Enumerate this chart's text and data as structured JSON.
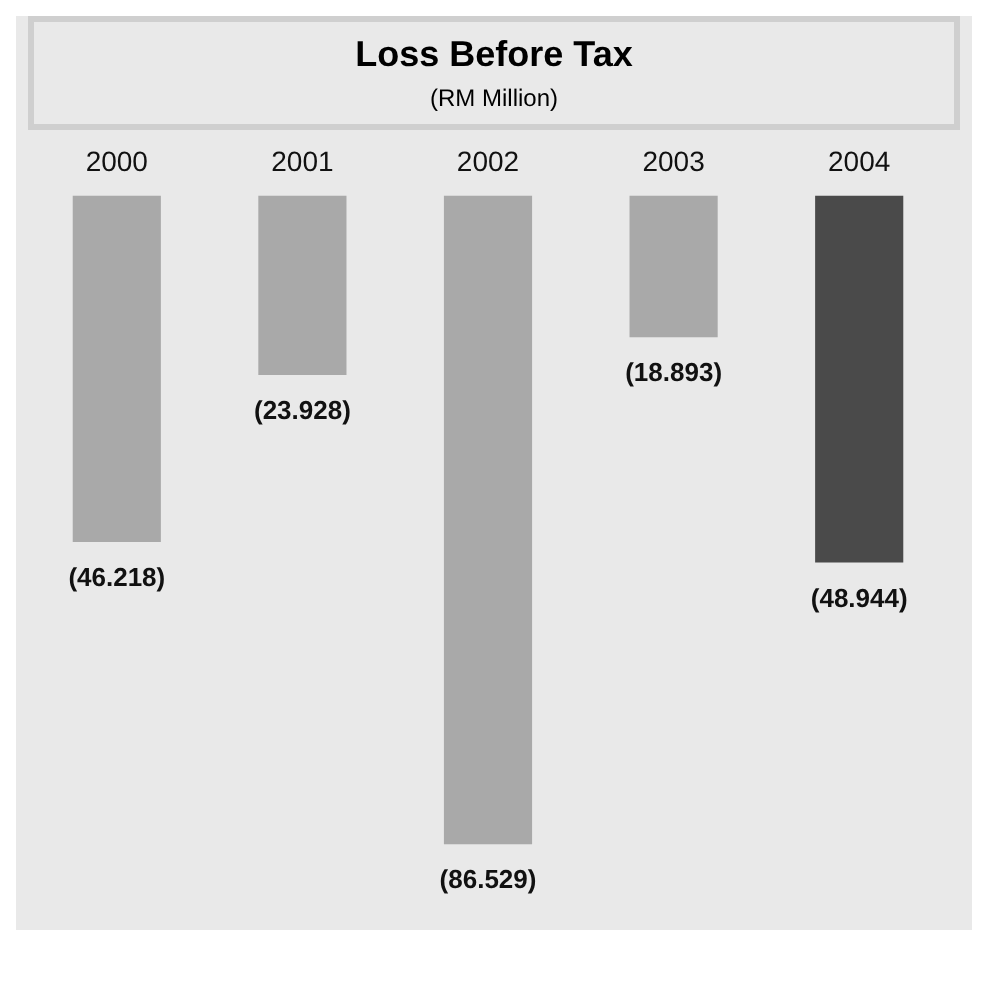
{
  "chart_data": {
    "type": "bar",
    "title": "Loss Before Tax",
    "subtitle": "(RM Million)",
    "categories": [
      "2000",
      "2001",
      "2002",
      "2003",
      "2004"
    ],
    "values": [
      -46.218,
      -23.928,
      -86.529,
      -18.893,
      -48.944
    ],
    "value_labels": [
      "(46.218)",
      "(23.928)",
      "(86.529)",
      "(18.893)",
      "(48.944)"
    ],
    "colors": [
      "#a9a9a9",
      "#a9a9a9",
      "#a9a9a9",
      "#a9a9a9",
      "#4a4a4a"
    ],
    "grid": false,
    "legend": false
  }
}
